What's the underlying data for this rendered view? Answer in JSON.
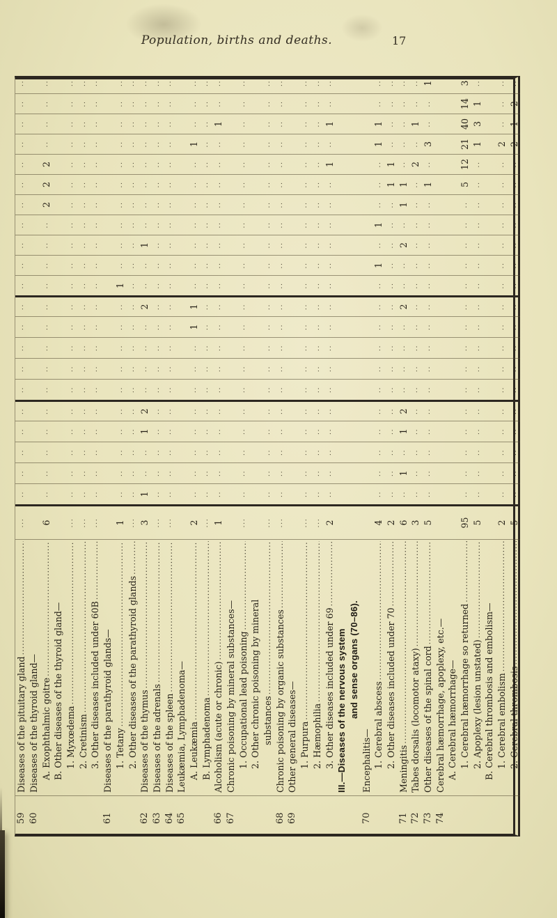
{
  "page": {
    "header_title": "Population, births and deaths.",
    "page_number": "17"
  },
  "table": {
    "description": "Sideways-printed mortality table, rows 59-74, totals column plus 21 sparse age-band columns grouped 5/5/11",
    "age_column_groups": [
      5,
      5,
      11
    ],
    "rows": [
      {
        "no": "59",
        "label": "Diseases of the pituitary gland",
        "indent": 0,
        "type": "leaf",
        "total": "dots",
        "cells": {}
      },
      {
        "no": "60",
        "label": "Diseases of the thyroid gland—",
        "indent": 0,
        "type": "header"
      },
      {
        "label": "A. Exophthalmic goitre",
        "indent": 1,
        "type": "leaf",
        "total": "6",
        "cells": {
          "15": "2",
          "16": "2",
          "17": "2"
        }
      },
      {
        "label": "B. Other diseases of the thyroid gland—",
        "indent": 1,
        "type": "header"
      },
      {
        "label": "1. Myxœdema",
        "indent": 2,
        "type": "leaf",
        "total": "dots",
        "cells": {}
      },
      {
        "label": "2. Cretinism",
        "indent": 2,
        "type": "leaf",
        "total": "dots",
        "cells": {}
      },
      {
        "label": "3. Other diseases included under 60B",
        "indent": 2,
        "type": "leaf",
        "total": "dots",
        "cells": {}
      },
      {
        "no": "61",
        "label": "Diseases of the parathyroid glands—",
        "indent": 0,
        "type": "header"
      },
      {
        "label": "1. Tetany",
        "indent": 2,
        "type": "leaf",
        "total": "1",
        "cells": {
          "11": "1"
        }
      },
      {
        "label": "2. Other diseases of the parathyroid glands",
        "indent": 2,
        "type": "leaf",
        "total": "dots",
        "cells": {}
      },
      {
        "no": "62",
        "label": "Diseases of the thymus",
        "indent": 0,
        "type": "leaf",
        "total": "3",
        "cells": {
          "1": "1",
          "4": "1",
          "5": "2",
          "10": "2",
          "13": "1"
        }
      },
      {
        "no": "63",
        "label": "Diseases of the adrenals",
        "indent": 0,
        "type": "leaf",
        "total": "dots",
        "cells": {}
      },
      {
        "no": "64",
        "label": "Diseases of the spleen",
        "indent": 0,
        "type": "leaf",
        "total": "dots",
        "cells": {}
      },
      {
        "no": "65",
        "label": "Leukæmia, Lymphadenoma—",
        "indent": 0,
        "type": "header"
      },
      {
        "label": "A. Leukæmia",
        "indent": 1,
        "type": "leaf",
        "total": "2",
        "cells": {
          "9": "1",
          "10": "1",
          "18": "1"
        }
      },
      {
        "label": "B. Lymphadenoma",
        "indent": 1,
        "type": "leaf",
        "total": "dots",
        "cells": {}
      },
      {
        "no": "66",
        "label": "Alcoholism (acute or chronic)",
        "indent": 0,
        "type": "leaf",
        "total": "1",
        "cells": {
          "19": "1"
        }
      },
      {
        "no": "67",
        "label": "Chronic poisoning by mineral substances—",
        "indent": 0,
        "type": "header"
      },
      {
        "label": "1. Occupational lead poisoning",
        "indent": 2,
        "type": "leaf",
        "total": "dots",
        "cells": {}
      },
      {
        "label": "2. Other chronic poisoning by mineral",
        "indent": 2,
        "type": "header"
      },
      {
        "label": "substances",
        "indent": 3,
        "type": "leaf",
        "total": "dots",
        "cells": {}
      },
      {
        "no": "68",
        "label": "Chronic poisoning by organic substances",
        "indent": 0,
        "type": "leaf",
        "total": "dots",
        "cells": {}
      },
      {
        "no": "69",
        "label": "Other general diseases—",
        "indent": 0,
        "type": "header"
      },
      {
        "label": "1. Purpura",
        "indent": 2,
        "type": "leaf",
        "total": "dots",
        "cells": {}
      },
      {
        "label": "2. Hæmophilia",
        "indent": 2,
        "type": "leaf",
        "total": "dots",
        "cells": {}
      },
      {
        "label": "3. Other diseases included under 69",
        "indent": 2,
        "type": "leaf",
        "total": "2",
        "cells": {
          "17": "1",
          "19": "1"
        }
      },
      {
        "label": "III.—Diseases of the nervous system",
        "indent": 0,
        "type": "section"
      },
      {
        "label": "and sense organs (70–86).",
        "indent": 1,
        "type": "section"
      },
      {
        "no": "70",
        "label": "Encephalitis—",
        "indent": 0,
        "type": "header"
      },
      {
        "label": "1. Cerebral abscess",
        "indent": 2,
        "type": "leaf",
        "total": "4",
        "cells": {
          "12": "1",
          "14": "1",
          "18": "1",
          "19": "1"
        }
      },
      {
        "label": "2. Other diseases included under 70",
        "indent": 2,
        "type": "leaf",
        "total": "2",
        "cells": {
          "16": "1",
          "17": "1"
        }
      },
      {
        "no": "71",
        "label": "Meningitis",
        "indent": 0,
        "type": "leaf",
        "total": "6",
        "cells": {
          "2": "1",
          "4": "1",
          "5": "2",
          "10": "2",
          "13": "2",
          "15": "1",
          "16": "1"
        }
      },
      {
        "no": "72",
        "label": "Tabes dorsalis (locomotor ataxy)",
        "indent": 0,
        "type": "leaf",
        "total": "3",
        "cells": {
          "17": "2",
          "19": "1"
        }
      },
      {
        "no": "73",
        "label": "Other diseases of the spinal cord",
        "indent": 0,
        "type": "leaf",
        "total": "5",
        "cells": {
          "16": "1",
          "18": "3",
          "21": "1"
        }
      },
      {
        "no": "74",
        "label": "Cerebral hæmorrhage, apoplexy, etc.—",
        "indent": 0,
        "type": "header"
      },
      {
        "label": "A. Cerebral hæmorrhage—",
        "indent": 1,
        "type": "header"
      },
      {
        "label": "1. Cerebral hæmorrhage so returned",
        "indent": 2,
        "type": "leaf",
        "total": "95",
        "cells": {
          "16": "5",
          "17": "12",
          "18": "21",
          "19": "40",
          "20": "14",
          "21": "3"
        }
      },
      {
        "label": "2. Apoplexy (lesion unstated)",
        "indent": 2,
        "type": "leaf",
        "total": "5",
        "cells": {
          "18": "1",
          "19": "3",
          "20": "1"
        }
      },
      {
        "label": "B. Cerebral thrombosis and embolism—",
        "indent": 1,
        "type": "header"
      },
      {
        "label": "1. Cerebral embolism",
        "indent": 2,
        "type": "leaf",
        "total": "2",
        "cells": {
          "18": "2"
        }
      },
      {
        "label": "2. Cerebral thrombosis",
        "indent": 2,
        "type": "leaf",
        "total": "5",
        "cells": {
          "18": "2",
          "19": "1",
          "20": "2"
        }
      }
    ]
  }
}
